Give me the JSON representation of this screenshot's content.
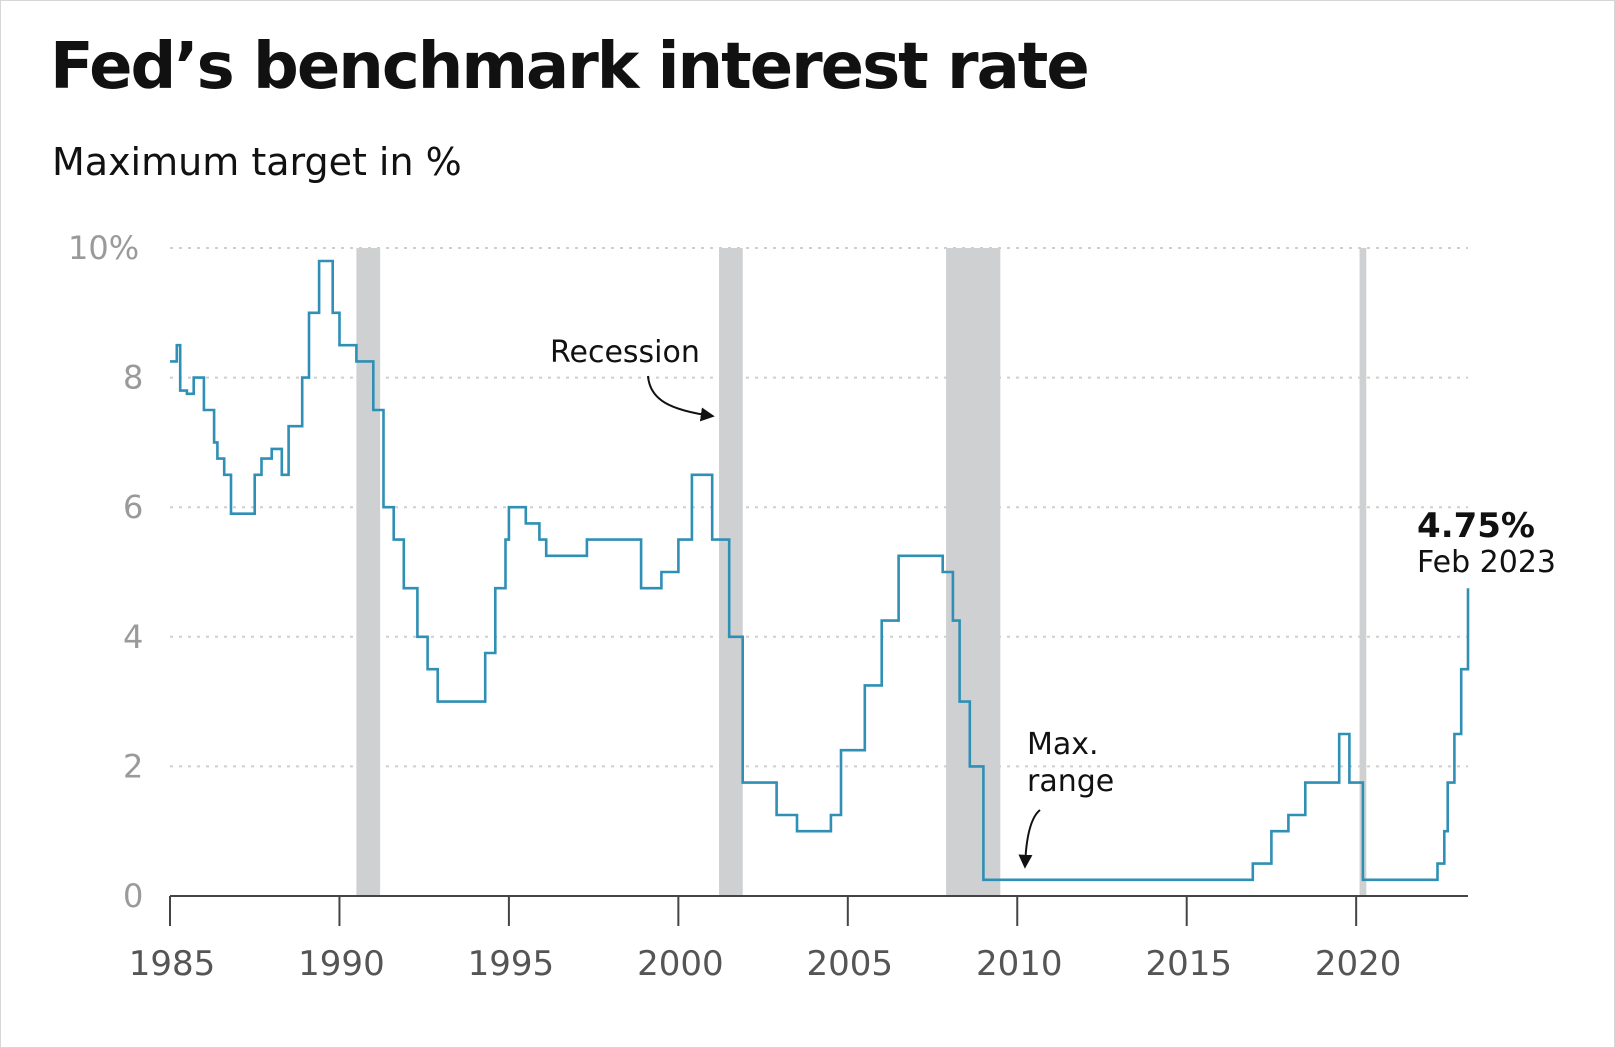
{
  "title": "Fed’s benchmark interest rate",
  "subtitle": "Maximum target in %",
  "chart_data": {
    "type": "line",
    "step": true,
    "title": "Fed’s benchmark interest rate",
    "subtitle": "Maximum target in %",
    "xlabel": "",
    "ylabel": "",
    "xlim": [
      1985,
      2023.3
    ],
    "ylim": [
      0,
      10
    ],
    "x_ticks": [
      1985,
      1990,
      1995,
      2000,
      2005,
      2010,
      2015,
      2020
    ],
    "x_tick_labels": [
      "1985",
      "1990",
      "1995",
      "2000",
      "2005",
      "2010",
      "2015",
      "2020"
    ],
    "y_ticks": [
      0,
      2,
      4,
      6,
      8,
      10
    ],
    "y_tick_labels": [
      "0",
      "2",
      "4",
      "6",
      "8",
      "10%"
    ],
    "grid": "horizontal dotted",
    "line_color": "#2f8fb4",
    "recession_color": "#cfd0d2",
    "recessions": [
      [
        1990.5,
        1991.2
      ],
      [
        2001.2,
        2001.9
      ],
      [
        2007.9,
        2009.5
      ],
      [
        2020.1,
        2020.3
      ]
    ],
    "series": [
      {
        "x": [
          1985.0,
          1985.2,
          1985.3,
          1985.5,
          1985.7,
          1986.0,
          1986.3,
          1986.4,
          1986.6,
          1986.8,
          1987.0,
          1987.5,
          1987.7,
          1988.0,
          1988.3,
          1988.5,
          1988.9,
          1989.1,
          1989.4,
          1989.8,
          1990.0,
          1990.5,
          1991.0,
          1991.3,
          1991.6,
          1991.9,
          1992.3,
          1992.6,
          1992.9,
          1994.0,
          1994.3,
          1994.6,
          1994.9,
          1995.0,
          1995.5,
          1995.9,
          1996.1,
          1997.3,
          1998.7,
          1998.9,
          1999.5,
          2000.0,
          2000.4,
          2001.0,
          2001.5,
          2001.9,
          2002.9,
          2003.5,
          2004.5,
          2004.8,
          2005.5,
          2006.0,
          2006.5,
          2007.6,
          2007.8,
          2008.1,
          2008.3,
          2008.6,
          2009.0,
          2015.95,
          2016.95,
          2017.5,
          2018.0,
          2018.5,
          2019.5,
          2019.8,
          2020.2,
          2022.2,
          2022.4,
          2022.6,
          2022.7,
          2022.9,
          2023.1,
          2023.3
        ],
        "y": [
          8.25,
          8.5,
          7.8,
          7.75,
          8.0,
          7.5,
          7.0,
          6.75,
          6.5,
          5.9,
          5.9,
          6.5,
          6.75,
          6.9,
          6.5,
          7.25,
          8.0,
          9.0,
          9.8,
          9.0,
          8.5,
          8.25,
          7.5,
          6.0,
          5.5,
          4.75,
          4.0,
          3.5,
          3.0,
          3.0,
          3.75,
          4.75,
          5.5,
          6.0,
          5.75,
          5.5,
          5.25,
          5.5,
          5.5,
          4.75,
          5.0,
          5.5,
          6.5,
          5.5,
          4.0,
          1.75,
          1.25,
          1.0,
          1.25,
          2.25,
          3.25,
          4.25,
          5.25,
          5.25,
          5.0,
          4.25,
          3.0,
          2.0,
          0.25,
          0.25,
          0.5,
          1.0,
          1.25,
          1.75,
          2.5,
          1.75,
          0.25,
          0.25,
          0.5,
          1.0,
          1.75,
          2.5,
          3.5,
          4.75
        ]
      }
    ],
    "annotations": [
      {
        "text": "Recession"
      },
      {
        "text": "Max."
      },
      {
        "text": "range"
      }
    ],
    "last_value": {
      "value": "4.75%",
      "date": "Feb 2023"
    }
  }
}
